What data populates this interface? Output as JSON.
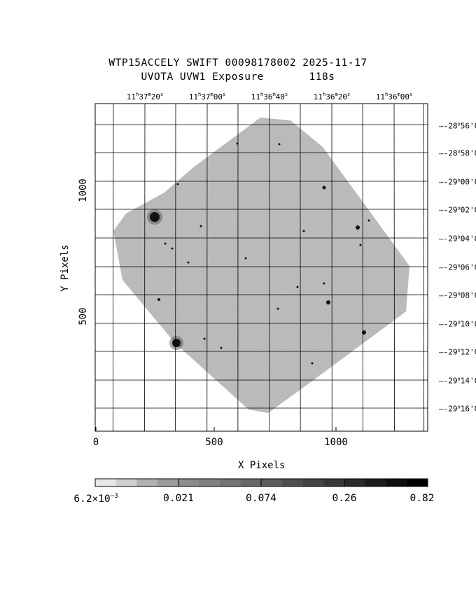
{
  "header": {
    "line1": "WTP15ACCELY SWIFT 00098178002 2025-11-17",
    "line2": "UVOTA UVW1 Exposure       118s"
  },
  "axes": {
    "xlabel": "X Pixels",
    "ylabel": "Y Pixels",
    "xticks": [
      "0",
      "500",
      "1000"
    ],
    "yticks": [
      "500",
      "1000"
    ]
  },
  "ra_labels": [
    {
      "h": "11",
      "m": "37",
      "s": "20"
    },
    {
      "h": "11",
      "m": "37",
      "s": "00"
    },
    {
      "h": "11",
      "m": "36",
      "s": "40"
    },
    {
      "h": "11",
      "m": "36",
      "s": "20"
    },
    {
      "h": "11",
      "m": "36",
      "s": "00"
    }
  ],
  "dec_labels": [
    {
      "deg": "-28",
      "min": "56'0"
    },
    {
      "deg": "-28",
      "min": "58'0"
    },
    {
      "deg": "-29",
      "min": "00'0"
    },
    {
      "deg": "-29",
      "min": "02'0"
    },
    {
      "deg": "-29",
      "min": "04'0"
    },
    {
      "deg": "-29",
      "min": "06'0"
    },
    {
      "deg": "-29",
      "min": "08'0"
    },
    {
      "deg": "-29",
      "min": "10'0"
    },
    {
      "deg": "-29",
      "min": "12'0"
    },
    {
      "deg": "-29",
      "min": "14'0"
    },
    {
      "deg": "-29",
      "min": "16'0"
    }
  ],
  "colorbar": {
    "mantissa": "6.2×10",
    "exponent": "−3",
    "labels": [
      "0.021",
      "0.074",
      "0.26",
      "0.82"
    ]
  }
}
